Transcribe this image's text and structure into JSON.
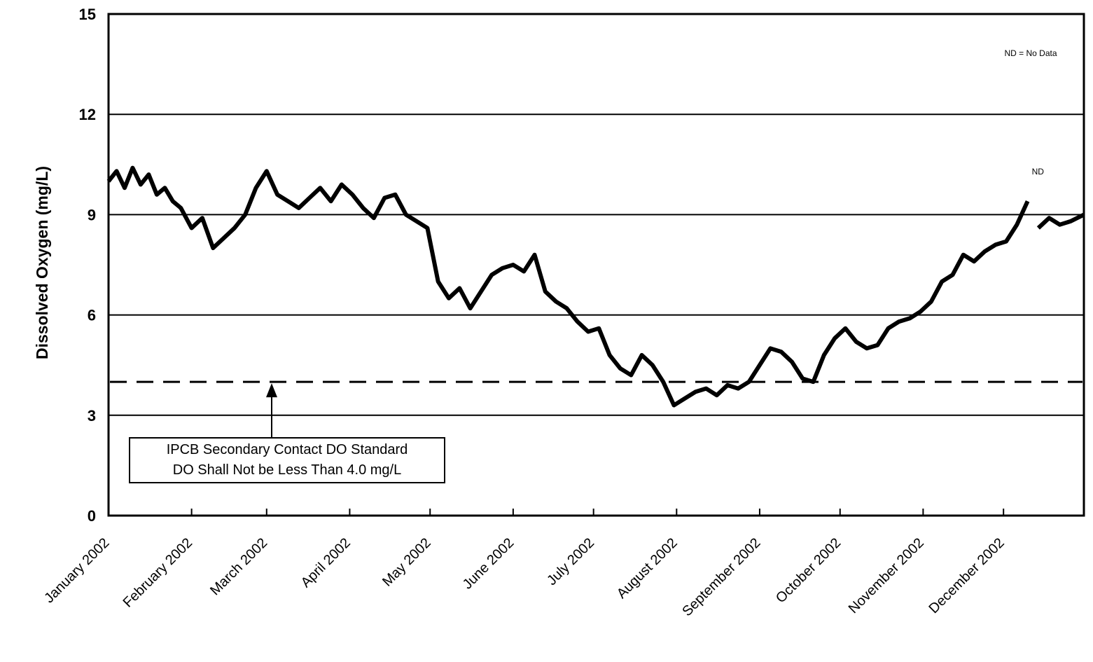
{
  "chart_data": {
    "type": "line",
    "ylabel": "Dissolved Oxygen (mg/L)",
    "xlabel": "",
    "ylim": [
      0,
      15
    ],
    "yticks": [
      0,
      3,
      6,
      9,
      12,
      15
    ],
    "ytick_labels": [
      "0",
      "3",
      "6",
      "9",
      "12",
      "15"
    ],
    "x_tick_labels": [
      "January 2002",
      "February 2002",
      "March 2002",
      "April 2002",
      "May 2002",
      "June 2002",
      "July 2002",
      "August 2002",
      "September 2002",
      "October 2002",
      "November 2002",
      "December 2002"
    ],
    "xlim": [
      "2002-01-01",
      "2002-12-31"
    ],
    "grid": "horizontal",
    "standard_line": {
      "value": 4.0,
      "style": "dashed"
    },
    "annotation": {
      "lines": [
        "IPCB Secondary Contact DO Standard",
        "DO Shall Not be Less Than 4.0 mg/L"
      ]
    },
    "legend_note": "ND = No Data",
    "nd_label": "ND",
    "no_data_period": [
      "2002-12-10",
      "2002-12-14"
    ],
    "series": [
      {
        "x": [
          "2002-01-01",
          "2002-01-04",
          "2002-01-07",
          "2002-01-10",
          "2002-01-13",
          "2002-01-16",
          "2002-01-19",
          "2002-01-22",
          "2002-01-25",
          "2002-01-28",
          "2002-02-01",
          "2002-02-05",
          "2002-02-09",
          "2002-02-13",
          "2002-02-17",
          "2002-02-21",
          "2002-02-25",
          "2002-03-01",
          "2002-03-05",
          "2002-03-09",
          "2002-03-13",
          "2002-03-17",
          "2002-03-21",
          "2002-03-25",
          "2002-03-29",
          "2002-04-02",
          "2002-04-06",
          "2002-04-10",
          "2002-04-14",
          "2002-04-18",
          "2002-04-22",
          "2002-04-26",
          "2002-04-30",
          "2002-05-04",
          "2002-05-08",
          "2002-05-12",
          "2002-05-16",
          "2002-05-20",
          "2002-05-24",
          "2002-05-28",
          "2002-06-01",
          "2002-06-05",
          "2002-06-09",
          "2002-06-13",
          "2002-06-17",
          "2002-06-21",
          "2002-06-25",
          "2002-06-29",
          "2002-07-03",
          "2002-07-07",
          "2002-07-11",
          "2002-07-15",
          "2002-07-19",
          "2002-07-23",
          "2002-07-27",
          "2002-07-31",
          "2002-08-04",
          "2002-08-08",
          "2002-08-12",
          "2002-08-16",
          "2002-08-20",
          "2002-08-24",
          "2002-08-28",
          "2002-09-01",
          "2002-09-05",
          "2002-09-09",
          "2002-09-13",
          "2002-09-17",
          "2002-09-21",
          "2002-09-25",
          "2002-09-29",
          "2002-10-03",
          "2002-10-07",
          "2002-10-11",
          "2002-10-15",
          "2002-10-19",
          "2002-10-23",
          "2002-10-27",
          "2002-10-31",
          "2002-11-04",
          "2002-11-08",
          "2002-11-12",
          "2002-11-16",
          "2002-11-20",
          "2002-11-24",
          "2002-11-28",
          "2002-12-02",
          "2002-12-06",
          "2002-12-10",
          null,
          "2002-12-14",
          "2002-12-18",
          "2002-12-22",
          "2002-12-26",
          "2002-12-31"
        ],
        "y": [
          10.0,
          10.3,
          9.8,
          10.4,
          9.9,
          10.2,
          9.6,
          9.8,
          9.4,
          9.2,
          8.6,
          8.9,
          8.0,
          8.3,
          8.6,
          9.0,
          9.8,
          10.3,
          9.6,
          9.4,
          9.2,
          9.5,
          9.8,
          9.4,
          9.9,
          9.6,
          9.2,
          8.9,
          9.5,
          9.6,
          9.0,
          8.8,
          8.6,
          7.0,
          6.5,
          6.8,
          6.2,
          6.7,
          7.2,
          7.4,
          7.5,
          7.3,
          7.8,
          6.7,
          6.4,
          6.2,
          5.8,
          5.5,
          5.6,
          4.8,
          4.4,
          4.2,
          4.8,
          4.5,
          4.0,
          3.3,
          3.5,
          3.7,
          3.8,
          3.6,
          3.9,
          3.8,
          4.0,
          4.5,
          5.0,
          4.9,
          4.6,
          4.1,
          4.0,
          4.8,
          5.3,
          5.6,
          5.2,
          5.0,
          5.1,
          5.6,
          5.8,
          5.9,
          6.1,
          6.4,
          7.0,
          7.2,
          7.8,
          7.6,
          7.9,
          8.1,
          8.2,
          8.7,
          9.4,
          null,
          8.6,
          8.9,
          8.7,
          8.8,
          9.0
        ]
      }
    ]
  }
}
